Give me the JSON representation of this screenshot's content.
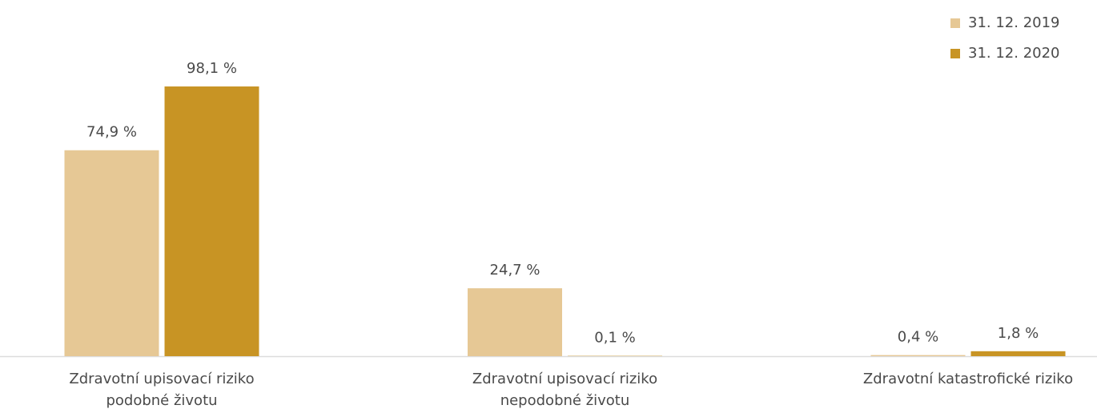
{
  "chart_data": {
    "type": "bar",
    "categories": [
      [
        "Zdravotní upisovací riziko",
        "podobné životu"
      ],
      [
        "Zdravotní upisovací riziko",
        "nepodobné životu"
      ],
      [
        "Zdravotní katastrofické riziko"
      ]
    ],
    "series": [
      {
        "name": "31. 12. 2019",
        "color": "#e6c895",
        "values": [
          74.9,
          24.7,
          0.4
        ],
        "value_labels": [
          "74,9 %",
          "24,7 %",
          "0,4 %"
        ]
      },
      {
        "name": "31. 12. 2020",
        "color": "#c89424",
        "values": [
          98.1,
          0.1,
          1.8
        ],
        "value_labels": [
          "98,1 %",
          "0,1 %",
          "1,8 %"
        ]
      }
    ],
    "ylim": [
      0,
      100
    ],
    "legend": "top-right"
  }
}
